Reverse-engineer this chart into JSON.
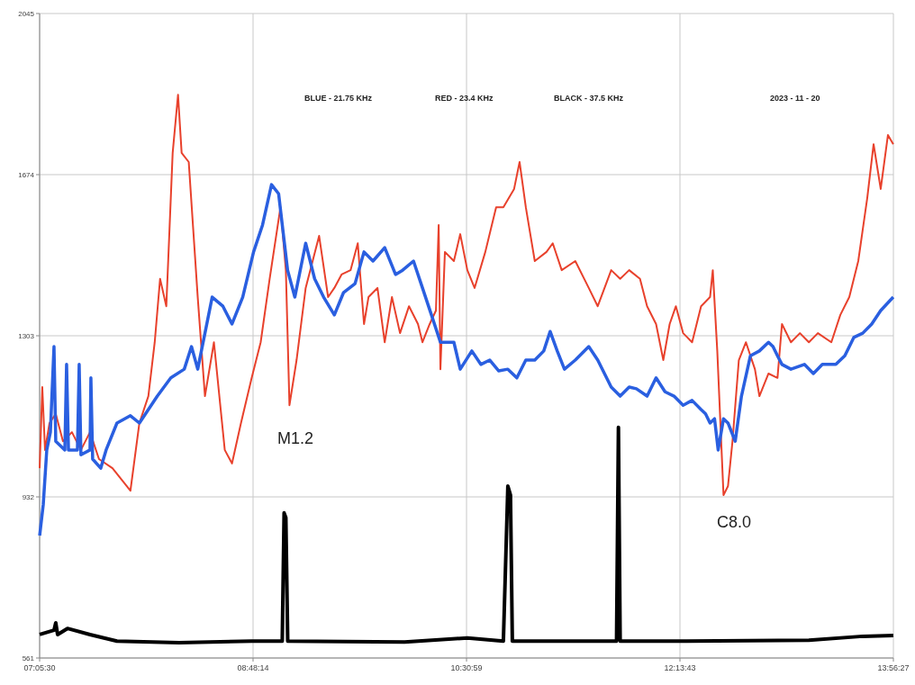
{
  "chart_data": {
    "type": "line",
    "xlim": [
      7.0917,
      13.9408
    ],
    "ylim": [
      561,
      2045
    ],
    "xticks": [
      {
        "value": 7.0917,
        "label": "07:05:30"
      },
      {
        "value": 8.8039,
        "label": "08:48:14"
      },
      {
        "value": 10.5164,
        "label": "10:30:59"
      },
      {
        "value": 12.2286,
        "label": "12:13:43"
      },
      {
        "value": 13.9408,
        "label": "13:56:27"
      }
    ],
    "yticks": [
      561,
      932,
      1303,
      1674,
      2045
    ],
    "grid": true,
    "marker": "none",
    "line_style": "solid",
    "annotations": [
      "BLUE - 21.75 KHz",
      "RED - 23.4 KHz",
      "BLACK - 37.5 KHz",
      "2023 - 11 - 20",
      "M1.2",
      "C8.0"
    ],
    "series": [
      {
        "color": "#e8412c",
        "x": [
          7.092,
          7.113,
          7.135,
          7.171,
          7.221,
          7.279,
          7.351,
          7.423,
          7.496,
          7.568,
          7.676,
          7.82,
          7.892,
          7.964,
          8.015,
          8.058,
          8.108,
          8.159,
          8.202,
          8.231,
          8.288,
          8.36,
          8.418,
          8.49,
          8.577,
          8.635,
          8.707,
          8.793,
          8.865,
          8.937,
          9.024,
          9.067,
          9.096,
          9.153,
          9.226,
          9.334,
          9.406,
          9.456,
          9.514,
          9.586,
          9.644,
          9.694,
          9.73,
          9.802,
          9.86,
          9.918,
          9.983,
          10.055,
          10.127,
          10.163,
          10.221,
          10.271,
          10.293,
          10.307,
          10.343,
          10.415,
          10.466,
          10.523,
          10.581,
          10.667,
          10.754,
          10.812,
          10.898,
          10.942,
          10.992,
          11.064,
          11.158,
          11.208,
          11.28,
          11.389,
          11.497,
          11.569,
          11.677,
          11.749,
          11.821,
          11.908,
          11.965,
          12.037,
          12.095,
          12.146,
          12.196,
          12.254,
          12.326,
          12.398,
          12.47,
          12.492,
          12.528,
          12.578,
          12.614,
          12.65,
          12.701,
          12.758,
          12.83,
          12.866,
          12.939,
          13.011,
          13.047,
          13.119,
          13.191,
          13.263,
          13.335,
          13.443,
          13.515,
          13.587,
          13.659,
          13.731,
          13.782,
          13.839,
          13.897,
          13.94
        ],
        "values": [
          998,
          1185,
          1040,
          1102,
          1123,
          1060,
          1081,
          1040,
          1081,
          1019,
          998,
          946,
          1102,
          1164,
          1288,
          1434,
          1371,
          1724,
          1858,
          1724,
          1703,
          1392,
          1164,
          1288,
          1040,
          1009,
          1102,
          1206,
          1288,
          1434,
          1599,
          1454,
          1143,
          1247,
          1413,
          1533,
          1392,
          1413,
          1444,
          1454,
          1516,
          1330,
          1392,
          1413,
          1288,
          1392,
          1309,
          1371,
          1330,
          1288,
          1330,
          1361,
          1558,
          1226,
          1496,
          1475,
          1537,
          1454,
          1413,
          1496,
          1599,
          1599,
          1641,
          1703,
          1599,
          1475,
          1496,
          1516,
          1454,
          1475,
          1413,
          1371,
          1454,
          1434,
          1454,
          1434,
          1371,
          1330,
          1247,
          1330,
          1371,
          1309,
          1288,
          1371,
          1392,
          1454,
          1268,
          936,
          957,
          1060,
          1247,
          1288,
          1226,
          1164,
          1216,
          1206,
          1330,
          1288,
          1309,
          1288,
          1309,
          1288,
          1351,
          1392,
          1475,
          1620,
          1744,
          1641,
          1765,
          1744
        ]
      },
      {
        "color": "#2a5fe0",
        "x": [
          7.092,
          7.121,
          7.149,
          7.178,
          7.207,
          7.221,
          7.294,
          7.308,
          7.323,
          7.395,
          7.409,
          7.423,
          7.496,
          7.503,
          7.517,
          7.582,
          7.625,
          7.712,
          7.82,
          7.892,
          7.964,
          8.036,
          8.144,
          8.252,
          8.31,
          8.36,
          8.418,
          8.476,
          8.562,
          8.635,
          8.721,
          8.808,
          8.88,
          8.952,
          9.009,
          9.081,
          9.139,
          9.226,
          9.298,
          9.37,
          9.456,
          9.529,
          9.622,
          9.694,
          9.766,
          9.86,
          9.947,
          10.004,
          10.091,
          10.163,
          10.235,
          10.307,
          10.415,
          10.466,
          10.559,
          10.631,
          10.703,
          10.775,
          10.848,
          10.92,
          10.992,
          11.064,
          11.136,
          11.187,
          11.244,
          11.302,
          11.389,
          11.497,
          11.569,
          11.677,
          11.749,
          11.821,
          11.879,
          11.965,
          12.037,
          12.109,
          12.181,
          12.254,
          12.326,
          12.398,
          12.434,
          12.47,
          12.506,
          12.535,
          12.578,
          12.614,
          12.672,
          12.722,
          12.794,
          12.866,
          12.939,
          12.975,
          13.011,
          13.047,
          13.119,
          13.227,
          13.299,
          13.371,
          13.479,
          13.551,
          13.623,
          13.695,
          13.767,
          13.839,
          13.94
        ],
        "values": [
          843,
          915,
          1040,
          1081,
          1278,
          1060,
          1040,
          1237,
          1040,
          1040,
          1237,
          1029,
          1040,
          1206,
          1019,
          998,
          1040,
          1102,
          1119,
          1102,
          1133,
          1164,
          1206,
          1226,
          1278,
          1226,
          1309,
          1392,
          1371,
          1330,
          1392,
          1496,
          1558,
          1651,
          1630,
          1454,
          1392,
          1516,
          1434,
          1392,
          1351,
          1402,
          1423,
          1496,
          1475,
          1506,
          1444,
          1454,
          1475,
          1413,
          1351,
          1288,
          1288,
          1226,
          1268,
          1237,
          1247,
          1222,
          1226,
          1206,
          1247,
          1247,
          1268,
          1313,
          1268,
          1226,
          1247,
          1278,
          1247,
          1185,
          1164,
          1185,
          1181,
          1164,
          1206,
          1174,
          1164,
          1143,
          1154,
          1133,
          1123,
          1102,
          1112,
          1040,
          1112,
          1102,
          1060,
          1164,
          1257,
          1268,
          1288,
          1278,
          1257,
          1237,
          1226,
          1237,
          1216,
          1237,
          1237,
          1257,
          1299,
          1309,
          1330,
          1361,
          1392
        ]
      },
      {
        "color": "#000000",
        "x": [
          7.092,
          7.207,
          7.221,
          7.236,
          7.315,
          7.496,
          7.712,
          8.209,
          8.793,
          9.038,
          9.053,
          9.067,
          9.082,
          10.019,
          10.523,
          10.812,
          10.848,
          10.869,
          10.884,
          11.72,
          11.735,
          11.749,
          12.254,
          13.263,
          13.695,
          13.94
        ],
        "values": [
          615,
          625,
          642,
          615,
          629,
          615,
          600,
          596,
          600,
          600,
          895,
          884,
          600,
          598,
          607,
          600,
          957,
          936,
          600,
          600,
          1092,
          600,
          600,
          602,
          611,
          613
        ]
      }
    ]
  }
}
